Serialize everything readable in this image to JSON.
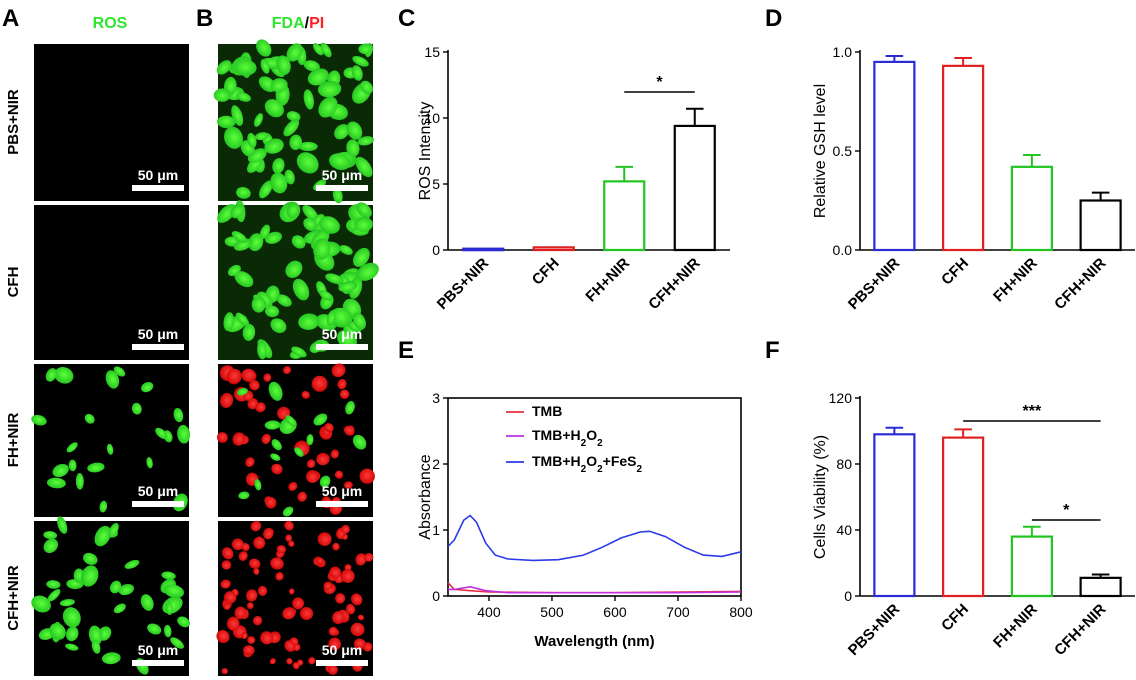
{
  "panels": {
    "a": {
      "label": "A",
      "header": "ROS",
      "header_color": "#2ee62e"
    },
    "b": {
      "label": "B",
      "header_green": "FDA",
      "header_sep": "/",
      "header_red": "PI",
      "green": "#2ee62e",
      "red": "#ff2020"
    },
    "rows": [
      "PBS+NIR",
      "CFH",
      "FH+NIR",
      "CFH+NIR"
    ],
    "scalebar": "50 μm"
  },
  "chart_data": [
    {
      "id": "C",
      "label": "C",
      "type": "bar",
      "categories": [
        "PBS+NIR",
        "CFH",
        "FH+NIR",
        "CFH+NIR"
      ],
      "values": [
        0.1,
        0.2,
        5.2,
        9.4
      ],
      "errors": [
        0,
        0,
        1.1,
        1.3
      ],
      "colors": [
        "#2b2bd6",
        "#e02020",
        "#22c422",
        "#000000"
      ],
      "ylabel": "ROS Intensity",
      "ylim": [
        0,
        15
      ],
      "yticks": [
        0,
        5,
        10,
        15
      ],
      "significance": [
        {
          "from": 2,
          "to": 3,
          "label": "*"
        }
      ]
    },
    {
      "id": "D",
      "label": "D",
      "type": "bar",
      "categories": [
        "PBS+NIR",
        "CFH",
        "FH+NIR",
        "CFH+NIR"
      ],
      "values": [
        0.95,
        0.93,
        0.42,
        0.25
      ],
      "errors": [
        0.03,
        0.04,
        0.06,
        0.04
      ],
      "colors": [
        "#2b2bd6",
        "#e02020",
        "#22c422",
        "#000000"
      ],
      "ylabel": "Relative GSH level",
      "ylim": [
        0,
        1.0
      ],
      "yticks": [
        "0.0",
        "0.5",
        "1.0"
      ],
      "significance": []
    },
    {
      "id": "E",
      "label": "E",
      "type": "line",
      "xlabel": "Wavelength (nm)",
      "ylabel": "Absorbance",
      "xlim": [
        335,
        800
      ],
      "ylim": [
        0,
        3
      ],
      "xticks": [
        400,
        500,
        600,
        700,
        800
      ],
      "yticks": [
        0,
        1,
        2,
        3
      ],
      "series": [
        {
          "name": "TMB",
          "color": "#e8303c",
          "points": [
            [
              335,
              0.2
            ],
            [
              345,
              0.1
            ],
            [
              370,
              0.08
            ],
            [
              400,
              0.06
            ],
            [
              500,
              0.05
            ],
            [
              600,
              0.05
            ],
            [
              700,
              0.06
            ],
            [
              800,
              0.07
            ]
          ]
        },
        {
          "name": "TMB+H2O2",
          "color": "#c030e0",
          "points": [
            [
              335,
              0.1
            ],
            [
              345,
              0.1
            ],
            [
              370,
              0.14
            ],
            [
              395,
              0.08
            ],
            [
              430,
              0.05
            ],
            [
              600,
              0.05
            ],
            [
              700,
              0.05
            ],
            [
              800,
              0.06
            ]
          ]
        },
        {
          "name": "TMB+H2O2+FeS2",
          "color": "#2a3ae8",
          "points": [
            [
              335,
              0.75
            ],
            [
              345,
              0.85
            ],
            [
              360,
              1.15
            ],
            [
              370,
              1.22
            ],
            [
              380,
              1.12
            ],
            [
              395,
              0.8
            ],
            [
              410,
              0.62
            ],
            [
              430,
              0.56
            ],
            [
              470,
              0.54
            ],
            [
              510,
              0.55
            ],
            [
              550,
              0.62
            ],
            [
              580,
              0.74
            ],
            [
              610,
              0.88
            ],
            [
              640,
              0.97
            ],
            [
              655,
              0.98
            ],
            [
              680,
              0.9
            ],
            [
              710,
              0.74
            ],
            [
              740,
              0.62
            ],
            [
              770,
              0.6
            ],
            [
              800,
              0.67
            ]
          ]
        }
      ],
      "legend_labels": [
        {
          "base": "TMB",
          "parts": []
        },
        {
          "base": "TMB+H",
          "parts": [
            [
              "sub",
              "2"
            ],
            [
              "txt",
              "O"
            ],
            [
              "sub",
              "2"
            ]
          ]
        },
        {
          "base": "TMB+H",
          "parts": [
            [
              "sub",
              "2"
            ],
            [
              "txt",
              "O"
            ],
            [
              "sub",
              "2"
            ],
            [
              "txt",
              "+FeS"
            ],
            [
              "sub",
              "2"
            ]
          ]
        }
      ]
    },
    {
      "id": "F",
      "label": "F",
      "type": "bar",
      "categories": [
        "PBS+NIR",
        "CFH",
        "FH+NIR",
        "CFH+NIR"
      ],
      "values": [
        98,
        96,
        36,
        11
      ],
      "errors": [
        4,
        5,
        6,
        2
      ],
      "colors": [
        "#2b2bd6",
        "#e02020",
        "#22c422",
        "#000000"
      ],
      "ylabel": "Cells Viability (%)",
      "ylim": [
        0,
        120
      ],
      "yticks": [
        0,
        40,
        80,
        120
      ],
      "significance": [
        {
          "from": 1,
          "to": 3,
          "label": "***"
        },
        {
          "from": 2,
          "to": 3,
          "label": "*"
        }
      ]
    }
  ]
}
